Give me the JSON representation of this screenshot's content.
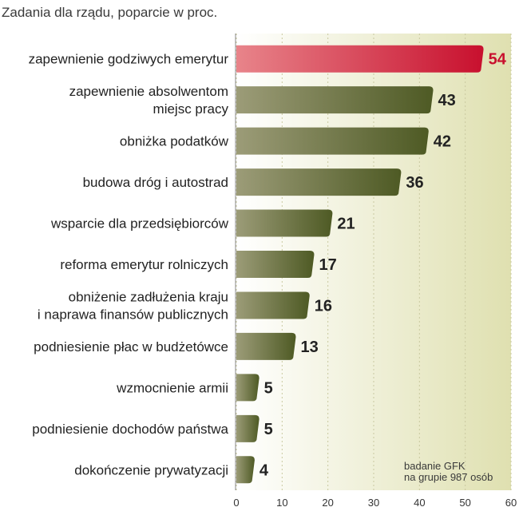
{
  "chart_data": {
    "type": "bar",
    "orientation": "horizontal",
    "title": "Zadania dla rządu, poparcie w proc.",
    "categories": [
      [
        "zapewnienie godziwych emerytur"
      ],
      [
        "zapewnienie absolwentom",
        "miejsc pracy"
      ],
      [
        "obniżka podatków"
      ],
      [
        "budowa dróg i autostrad"
      ],
      [
        "wsparcie dla przedsiębiorców"
      ],
      [
        "reforma emerytur rolniczych"
      ],
      [
        "obniżenie zadłużenia kraju",
        "i naprawa finansów publicznych"
      ],
      [
        "podniesienie płac w budżetówce"
      ],
      [
        "wzmocnienie armii"
      ],
      [
        "podniesienie dochodów państwa"
      ],
      [
        "dokończenie prywatyzacji"
      ]
    ],
    "values": [
      54,
      43,
      42,
      36,
      21,
      17,
      16,
      13,
      5,
      5,
      4
    ],
    "xlim": [
      0,
      60
    ],
    "xticks": [
      0,
      10,
      20,
      30,
      40,
      50,
      60
    ],
    "highlight_index": 0,
    "colors": {
      "highlight_light": "#e8848a",
      "highlight_dark": "#c8102e",
      "bar_light": "#9c9c78",
      "bar_dark": "#4e5a24",
      "background_light": "#ffffff",
      "background_dark": "#dfe0b0",
      "value_text": "#222222",
      "highlight_value_text": "#c8102e"
    }
  },
  "source_note": [
    "badanie GFK",
    "na grupie 987 osób"
  ]
}
